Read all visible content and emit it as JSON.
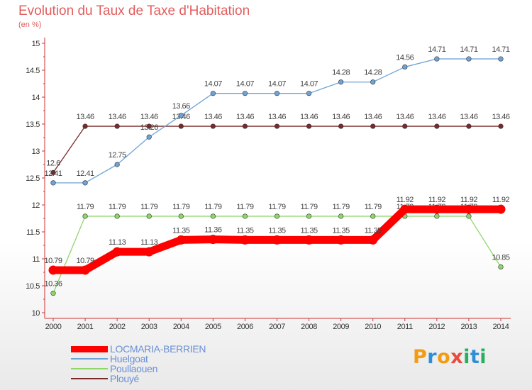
{
  "title": "Evolution du Taux de Taxe d'Habitation",
  "unit_label": "(en %)",
  "brand": {
    "text": "Proxiti",
    "letters": [
      {
        "ch": "P",
        "color": "#f39c12"
      },
      {
        "ch": "r",
        "color": "#2f8fd6"
      },
      {
        "ch": "o",
        "color": "#f39c12"
      },
      {
        "ch": "x",
        "color": "#e74c3c"
      },
      {
        "ch": "i",
        "color": "#27ae60"
      },
      {
        "ch": "t",
        "color": "#2f8fd6"
      },
      {
        "ch": "i",
        "color": "#27ae60"
      }
    ]
  },
  "chart_data": {
    "type": "line",
    "x": [
      "2000",
      "2001",
      "2002",
      "2003",
      "2004",
      "2005",
      "2006",
      "2007",
      "2008",
      "2009",
      "2010",
      "2011",
      "2012",
      "2013",
      "2014"
    ],
    "ylim": [
      10,
      15
    ],
    "yticks": [
      "10",
      "10.5",
      "11",
      "11.5",
      "12",
      "12.5",
      "13",
      "13.5",
      "14",
      "14.5",
      "15"
    ],
    "grid": false,
    "legend_position": "bottom-left",
    "series": [
      {
        "name": "Plouyé",
        "color": "#7a2a2a",
        "values": [
          12.6,
          13.46,
          13.46,
          13.46,
          13.46,
          13.46,
          13.46,
          13.46,
          13.46,
          13.46,
          13.46,
          13.46,
          13.46,
          13.46,
          13.46
        ],
        "labels": [
          "12.6",
          "13.46",
          "13.46",
          "13.46",
          "13.46",
          "13.46",
          "13.46",
          "13.46",
          "13.46",
          "13.46",
          "13.46",
          "13.46",
          "13.46",
          "13.46",
          "13.46"
        ]
      },
      {
        "name": "Poullaouen",
        "color": "#8fd66a",
        "values": [
          10.36,
          11.79,
          11.79,
          11.79,
          11.79,
          11.79,
          11.79,
          11.79,
          11.79,
          11.79,
          11.79,
          11.79,
          11.79,
          11.79,
          10.85
        ],
        "labels": [
          "10.36",
          "11.79",
          "11.79",
          "11.79",
          "11.79",
          "11.79",
          "11.79",
          "11.79",
          "11.79",
          "11.79",
          "11.79",
          "11.79",
          "11.79",
          "11.79",
          "10.85"
        ]
      },
      {
        "name": "Huelgoat",
        "color": "#6fa3d6",
        "values": [
          12.41,
          12.41,
          12.75,
          13.26,
          13.66,
          14.07,
          14.07,
          14.07,
          14.07,
          14.28,
          14.28,
          14.56,
          14.71,
          14.71,
          14.71
        ],
        "labels": [
          "12.41",
          "12.41",
          "12.75",
          "13.26",
          "13.66",
          "14.07",
          "14.07",
          "14.07",
          "14.07",
          "14.28",
          "14.28",
          "14.56",
          "14.71",
          "14.71",
          "14.71"
        ]
      },
      {
        "name": "LOCMARIA-BERRIEN",
        "color": "#ff0000",
        "values": [
          10.79,
          10.79,
          11.13,
          11.13,
          11.35,
          11.36,
          11.35,
          11.35,
          11.35,
          11.35,
          11.35,
          11.92,
          11.92,
          11.92,
          11.92
        ],
        "labels": [
          "10.79",
          "10.79",
          "11.13",
          "11.13",
          "11.35",
          "11.36",
          "11.35",
          "11.35",
          "11.35",
          "11.35",
          "11.35",
          "11.92",
          "11.92",
          "11.92",
          "11.92"
        ]
      }
    ],
    "legend": [
      "LOCMARIA-BERRIEN",
      "Huelgoat",
      "Poullaouen",
      "Plouyé"
    ]
  }
}
